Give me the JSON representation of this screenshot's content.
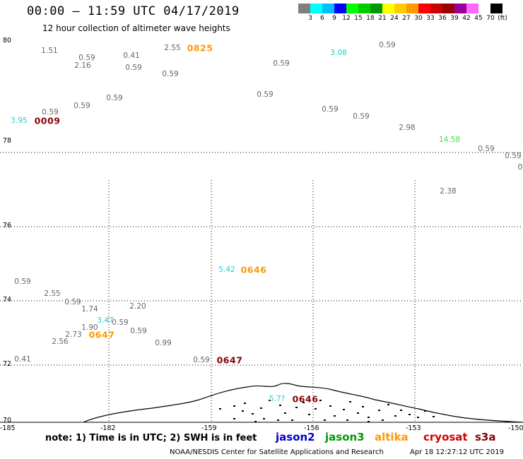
{
  "header": {
    "title": "00:00 — 11:59 UTC 04/17/2019",
    "subtitle": "12 hour collection of altimeter wave heights"
  },
  "legend": {
    "colors": [
      "#7f7f7f",
      "#00ffff",
      "#00bfff",
      "#0000ff",
      "#00ff00",
      "#00cc00",
      "#009900",
      "#ffff00",
      "#ffcc00",
      "#ff9900",
      "#ff0000",
      "#cc0000",
      "#990000",
      "#990099",
      "#ff66ff",
      "#ffffff",
      "#000000"
    ],
    "labels": [
      "3",
      "6",
      "9",
      "12",
      "15",
      "18",
      "21",
      "24",
      "27",
      "30",
      "33",
      "36",
      "39",
      "42",
      "45",
      "70",
      "(ft)"
    ]
  },
  "axes": {
    "lat_labels": [
      "80",
      "78",
      "76",
      "74",
      "72",
      "70"
    ],
    "lon_labels": [
      "-185",
      "-182",
      "-159",
      "-156",
      "-153",
      "-150"
    ]
  },
  "wave_heights": [
    {
      "v": "1.51",
      "c": "#666666"
    },
    {
      "v": "0.59",
      "c": "#666666"
    },
    {
      "v": "2.16",
      "c": "#666666"
    },
    {
      "v": "0.41",
      "c": "#666666"
    },
    {
      "v": "0.59",
      "c": "#666666"
    },
    {
      "v": "2.55",
      "c": "#666666"
    },
    {
      "v": "0.59",
      "c": "#666666"
    },
    {
      "v": "0.59",
      "c": "#666666"
    },
    {
      "v": "3.08",
      "c": "#22cccc"
    },
    {
      "v": "0.59",
      "c": "#666666"
    },
    {
      "v": "0.59",
      "c": "#666666"
    },
    {
      "v": "0.59",
      "c": "#666666"
    },
    {
      "v": "0.59",
      "c": "#666666"
    },
    {
      "v": "3.95",
      "c": "#22cccc"
    },
    {
      "v": "0.59",
      "c": "#666666"
    },
    {
      "v": "0.59",
      "c": "#666666"
    },
    {
      "v": "0.59",
      "c": "#666666"
    },
    {
      "v": "2.98",
      "c": "#666666"
    },
    {
      "v": "14.58",
      "c": "#44dd44"
    },
    {
      "v": "0.59",
      "c": "#666666"
    },
    {
      "v": "0.59",
      "c": "#666666"
    },
    {
      "v": "0",
      "c": "#666666"
    },
    {
      "v": "2.38",
      "c": "#666666"
    },
    {
      "v": "5.42",
      "c": "#22cccc"
    },
    {
      "v": "0.59",
      "c": "#666666"
    },
    {
      "v": "2.55",
      "c": "#666666"
    },
    {
      "v": "0.59",
      "c": "#666666"
    },
    {
      "v": "1.74",
      "c": "#666666"
    },
    {
      "v": "2.20",
      "c": "#666666"
    },
    {
      "v": "3.47",
      "c": "#22cccc"
    },
    {
      "v": "0.59",
      "c": "#666666"
    },
    {
      "v": "1.90",
      "c": "#666666"
    },
    {
      "v": "2.73",
      "c": "#666666"
    },
    {
      "v": "0.59",
      "c": "#666666"
    },
    {
      "v": "2.56",
      "c": "#666666"
    },
    {
      "v": "0.99",
      "c": "#666666"
    },
    {
      "v": "0.41",
      "c": "#666666"
    },
    {
      "v": "0.59",
      "c": "#666666"
    },
    {
      "v": "5.7?",
      "c": "#22cccc"
    }
  ],
  "pass_times": [
    {
      "t": "0825",
      "c": "#ff9900"
    },
    {
      "t": "0009",
      "c": "#880000"
    },
    {
      "t": "0646",
      "c": "#ff9900"
    },
    {
      "t": "0647",
      "c": "#ff9900"
    },
    {
      "t": "0647",
      "c": "#880000"
    },
    {
      "t": "0646",
      "c": "#880000"
    }
  ],
  "footer": {
    "note": "note:  1) Time is in UTC;  2) SWH is in feet",
    "satellites": [
      {
        "name": "jason2",
        "color": "#0000cc"
      },
      {
        "name": "jason3",
        "color": "#009900"
      },
      {
        "name": "altika",
        "color": "#ff9900"
      },
      {
        "name": "cryosat",
        "color": "#cc0000"
      },
      {
        "name": "s3a",
        "color": "#880000"
      }
    ],
    "credit": "NOAA/NESDIS Center for Satellite Applications and Research",
    "timestamp": "Apr 18 12:27:12 UTC 2019"
  }
}
